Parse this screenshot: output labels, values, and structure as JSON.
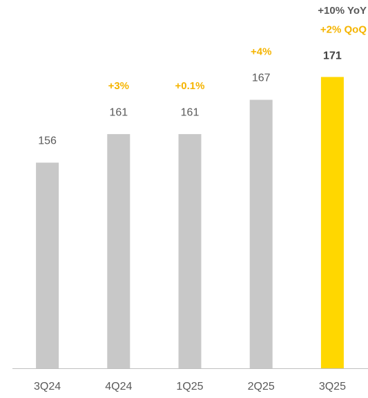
{
  "chart_data": {
    "type": "bar",
    "categories": [
      "3Q24",
      "4Q24",
      "1Q25",
      "2Q25",
      "3Q25"
    ],
    "values": [
      156,
      161,
      161,
      167,
      171
    ],
    "colors": [
      "#c8c8c8",
      "#c8c8c8",
      "#c8c8c8",
      "#c8c8c8",
      "#ffd700"
    ],
    "growth_labels": [
      null,
      "+3%",
      "+0.1%",
      "+4%",
      "+2% QoQ"
    ],
    "annotation": "+10% YoY",
    "ylim": [
      120,
      180
    ]
  }
}
